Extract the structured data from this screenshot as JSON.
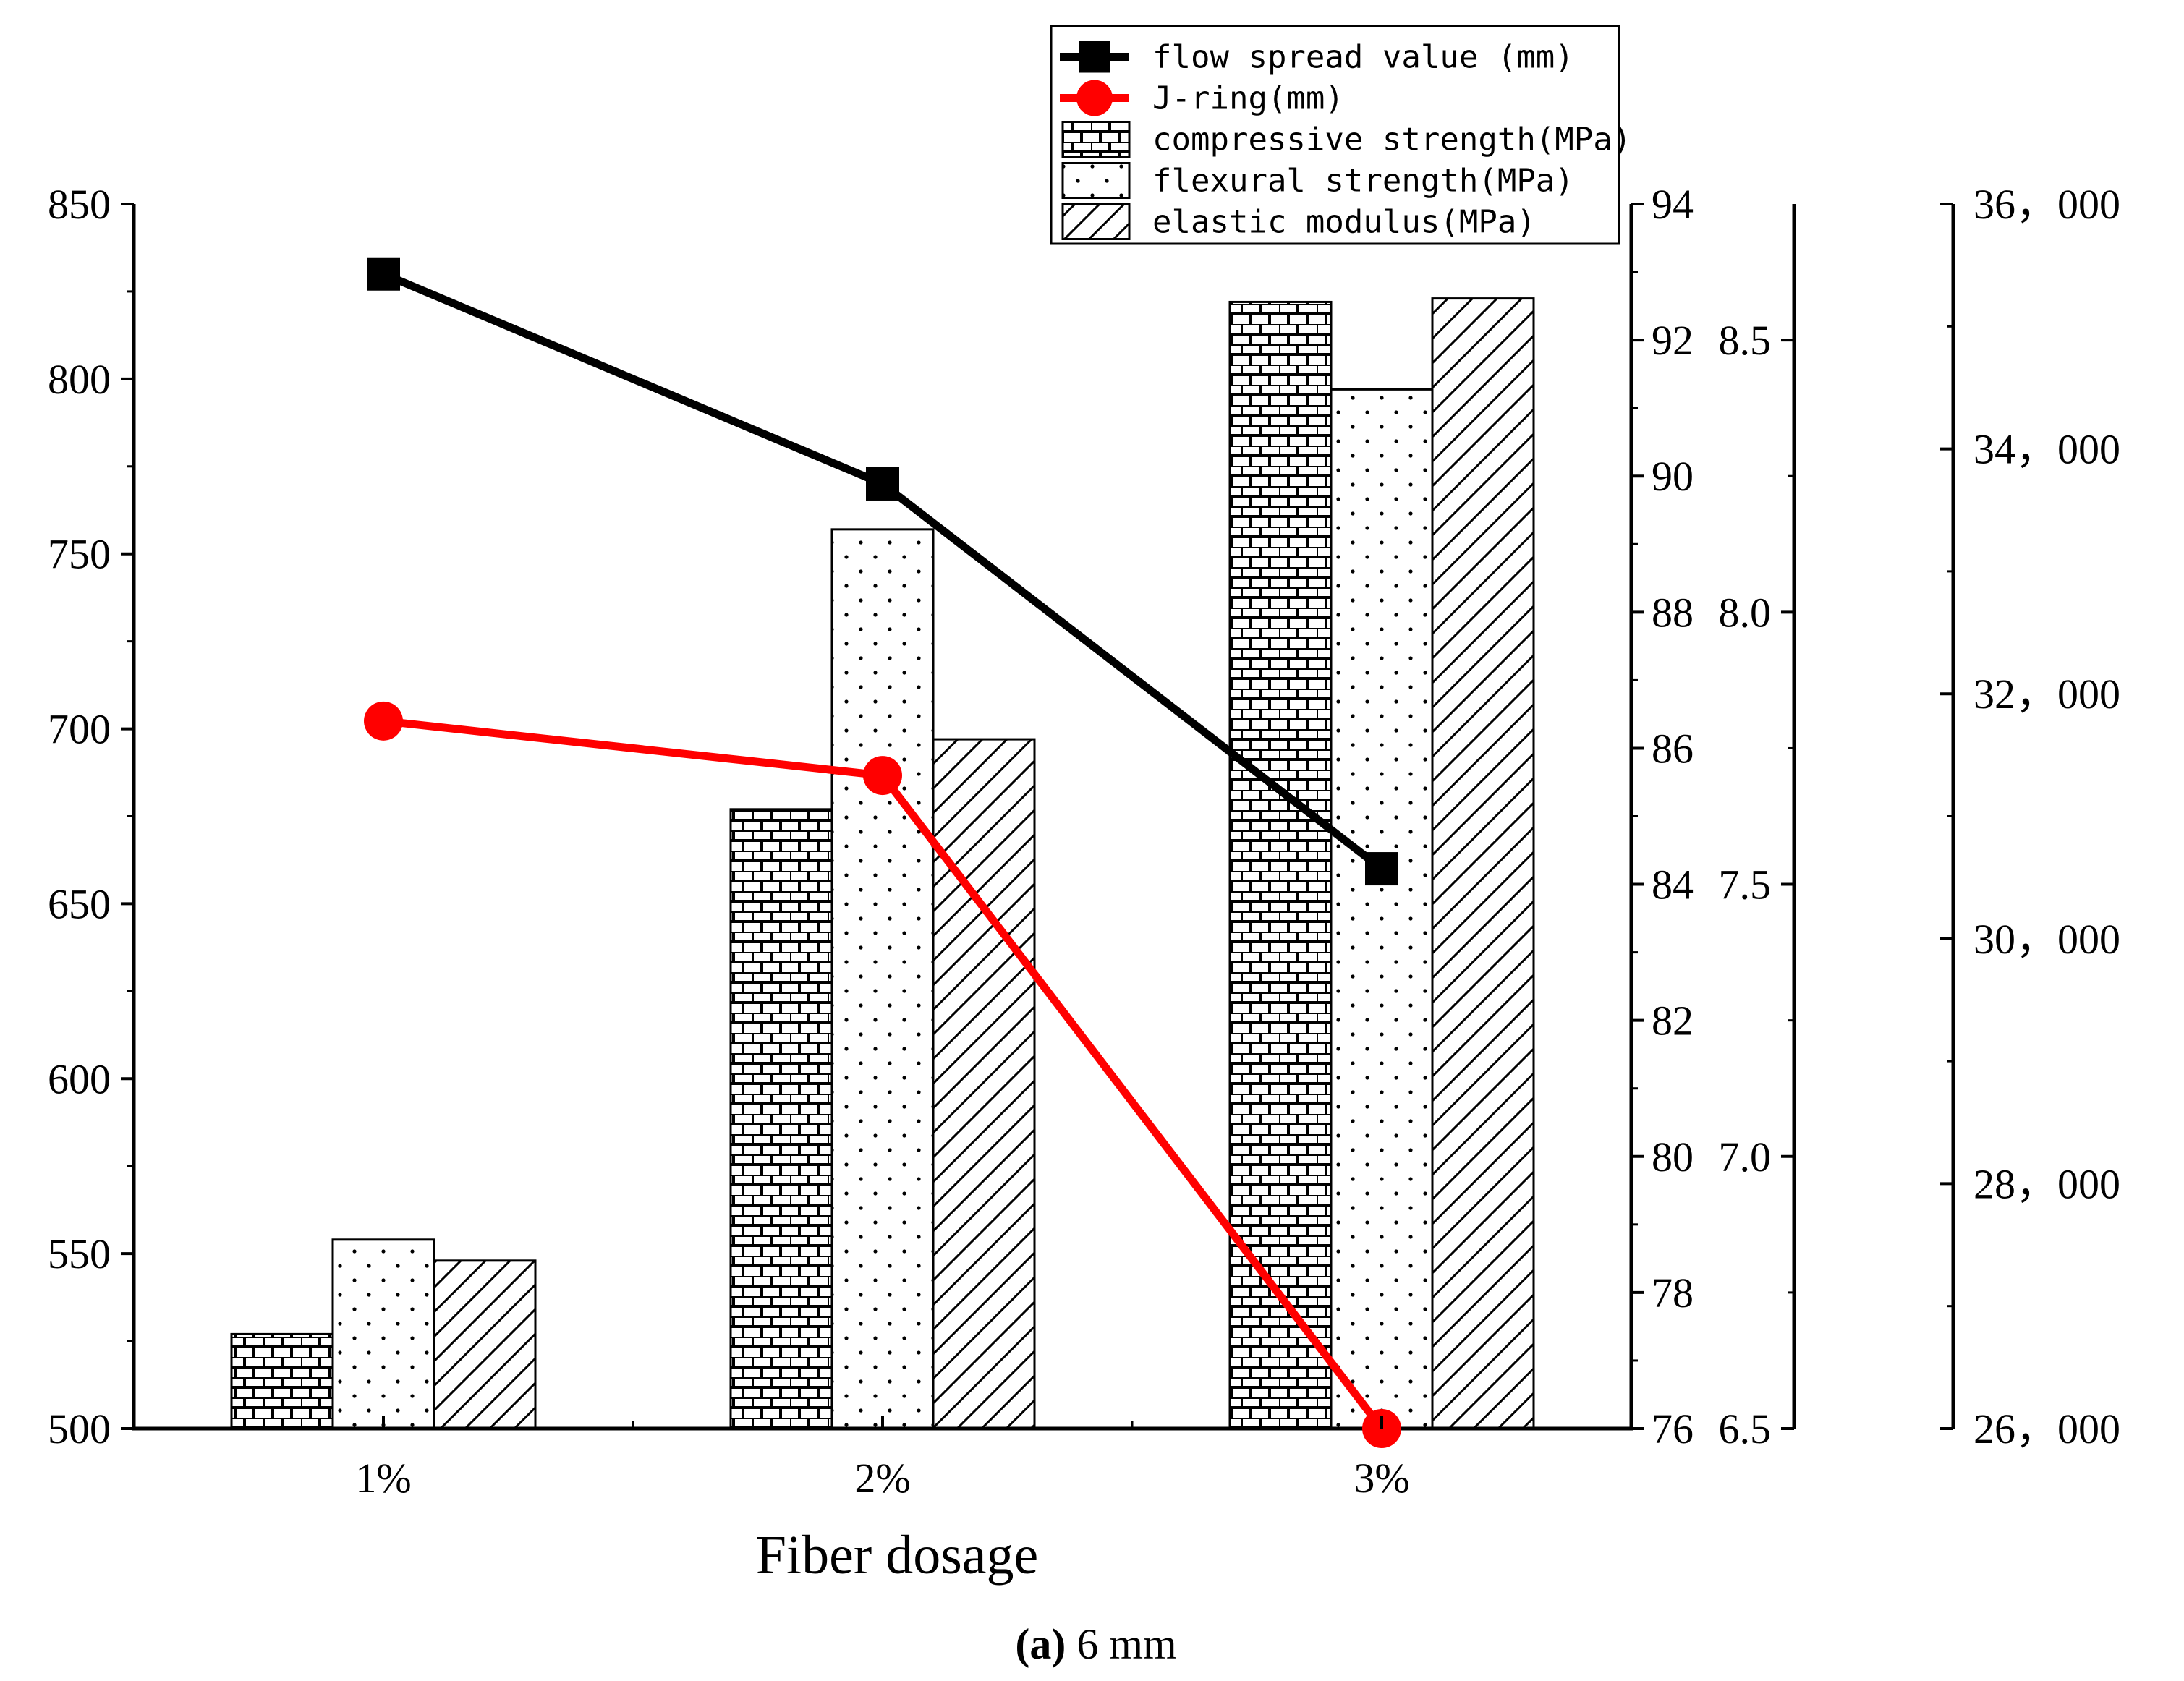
{
  "chart_data": {
    "type": "bar",
    "categories": [
      "1%",
      "2%",
      "3%"
    ],
    "xlabel": "Fiber dosage",
    "caption": {
      "bold": "(a)",
      "rest": " 6 mm"
    },
    "axes": {
      "left": {
        "min": 500,
        "max": 850,
        "ticks": [
          "500",
          "550",
          "600",
          "650",
          "700",
          "750",
          "800",
          "850"
        ]
      },
      "right1": {
        "min": 76,
        "max": 94,
        "ticks": [
          "76",
          "78",
          "80",
          "82",
          "84",
          "86",
          "88",
          "90",
          "92",
          "94"
        ]
      },
      "right2": {
        "min": 6.5,
        "max": 8.75,
        "ticks": [
          "6.5",
          "7.0",
          "7.5",
          "8.0",
          "8.5"
        ]
      },
      "right3": {
        "min": 26000,
        "max": 36000,
        "ticks": [
          "26，000",
          "28，000",
          "30，000",
          "32，000",
          "34，000",
          "36，000"
        ]
      }
    },
    "series": [
      {
        "name": "flow spread value (mm)",
        "kind": "line",
        "axis": "left",
        "marker": "square",
        "color": "#000000",
        "values": [
          830,
          770,
          660
        ]
      },
      {
        "name": "J-ring(mm)",
        "kind": "line",
        "axis": "right1",
        "marker": "circle",
        "color": "#ff0000",
        "values": [
          86.4,
          85.6,
          76.0
        ]
      },
      {
        "name": "compressive strength(MPa)",
        "kind": "bar",
        "axis": "left",
        "pattern": "brick",
        "values": [
          527,
          677,
          822
        ]
      },
      {
        "name": "flexural strength(MPa)",
        "kind": "bar",
        "axis": "left",
        "pattern": "dots",
        "values": [
          554,
          757,
          797
        ]
      },
      {
        "name": "elastic modulus(MPa)",
        "kind": "bar",
        "axis": "left",
        "pattern": "hatch",
        "values": [
          548,
          697,
          823
        ]
      }
    ]
  }
}
